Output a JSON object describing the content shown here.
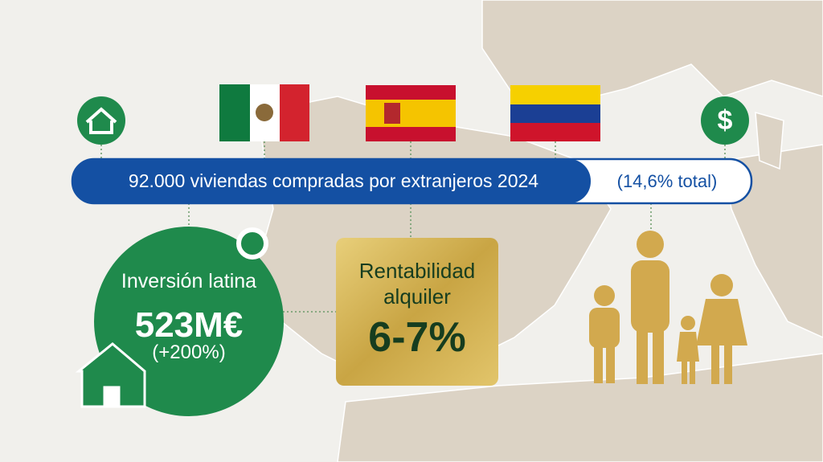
{
  "banner": {
    "text": "92.000 viviendas compradas por extranjeros 2024",
    "share": "(14,6% total)"
  },
  "icons": {
    "dollar": "$"
  },
  "cards": {
    "investment": {
      "title": "Inversión latina",
      "value": "523M€",
      "change": "(+200%)"
    },
    "rental": {
      "title": "Rentabilidad alquiler",
      "value": "6-7%"
    }
  }
}
